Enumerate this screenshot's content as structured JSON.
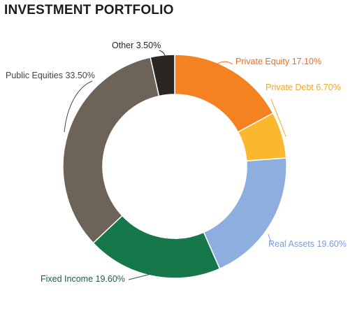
{
  "chart_data": {
    "type": "pie",
    "donut": true,
    "title": "INVESTMENT PORTFOLIO",
    "legend": "none",
    "slices": [
      {
        "name": "Private Equity",
        "value": 17.1,
        "label": "Private Equity 17.10%",
        "color": "#f58220",
        "label_color": "#f26a21"
      },
      {
        "name": "Private Debt",
        "value": 6.7,
        "label": "Private Debt 6.70%",
        "color": "#fbb82e",
        "label_color": "#f5a623"
      },
      {
        "name": "Real Assets",
        "value": 19.6,
        "label": "Real Assets 19.60%",
        "color": "#8eaee0",
        "label_color": "#7a9fd8"
      },
      {
        "name": "Fixed Income",
        "value": 19.6,
        "label": "Fixed Income 19.60%",
        "color": "#16784a",
        "label_color": "#1f5f3c"
      },
      {
        "name": "Public Equities",
        "value": 33.5,
        "label": "Public Equities 33.50%",
        "color": "#6e6359",
        "label_color": "#4a4540"
      },
      {
        "name": "Other",
        "value": 3.5,
        "label": "Other 3.50%",
        "color": "#2a2624",
        "label_color": "#2a2624"
      }
    ]
  }
}
